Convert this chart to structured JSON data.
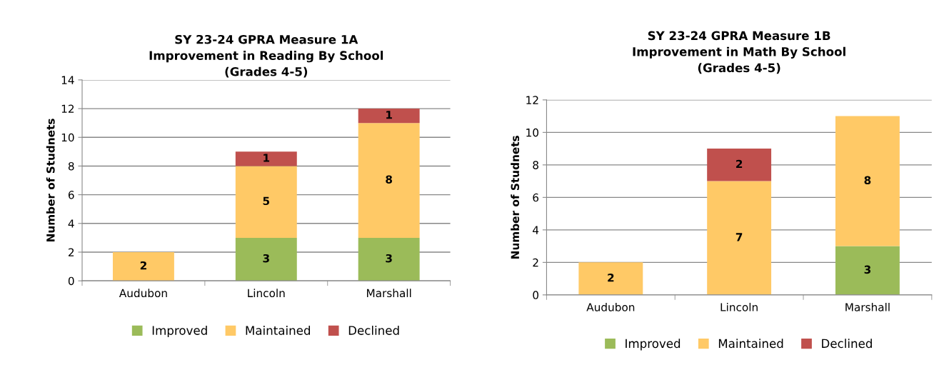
{
  "chart_data": [
    {
      "type": "bar",
      "stacked": true,
      "title": "SY 23-24 GPRA Measure 1A\nImprovement in Reading By School\n(Grades 4-5)",
      "ylabel": "Number of Studnets",
      "categories": [
        "Audubon",
        "Lincoln",
        "Marshall"
      ],
      "series": [
        {
          "name": "Improved",
          "color": "#9bbb59",
          "values": [
            null,
            3,
            3
          ]
        },
        {
          "name": "Maintained",
          "color": "#ffc966",
          "values": [
            2,
            5,
            8
          ]
        },
        {
          "name": "Declined",
          "color": "#c0504d",
          "values": [
            null,
            1,
            1
          ]
        }
      ],
      "ylim": [
        0,
        14
      ],
      "yticks": [
        0,
        2,
        4,
        6,
        8,
        10,
        12,
        14
      ],
      "grid": "y",
      "legend": "bottom",
      "data_labels": true
    },
    {
      "type": "bar",
      "stacked": true,
      "title": "SY 23-24 GPRA Measure 1B\nImprovement in Math By School\n(Grades 4-5)",
      "ylabel": "Number of Studnets",
      "categories": [
        "Audubon",
        "Lincoln",
        "Marshall"
      ],
      "series": [
        {
          "name": "Improved",
          "color": "#9bbb59",
          "values": [
            null,
            null,
            3
          ]
        },
        {
          "name": "Maintained",
          "color": "#ffc966",
          "values": [
            2,
            7,
            8
          ]
        },
        {
          "name": "Declined",
          "color": "#c0504d",
          "values": [
            null,
            2,
            null
          ]
        }
      ],
      "ylim": [
        0,
        12
      ],
      "yticks": [
        0,
        2,
        4,
        6,
        8,
        10,
        12
      ],
      "grid": "y",
      "legend": "bottom",
      "data_labels": true
    }
  ]
}
